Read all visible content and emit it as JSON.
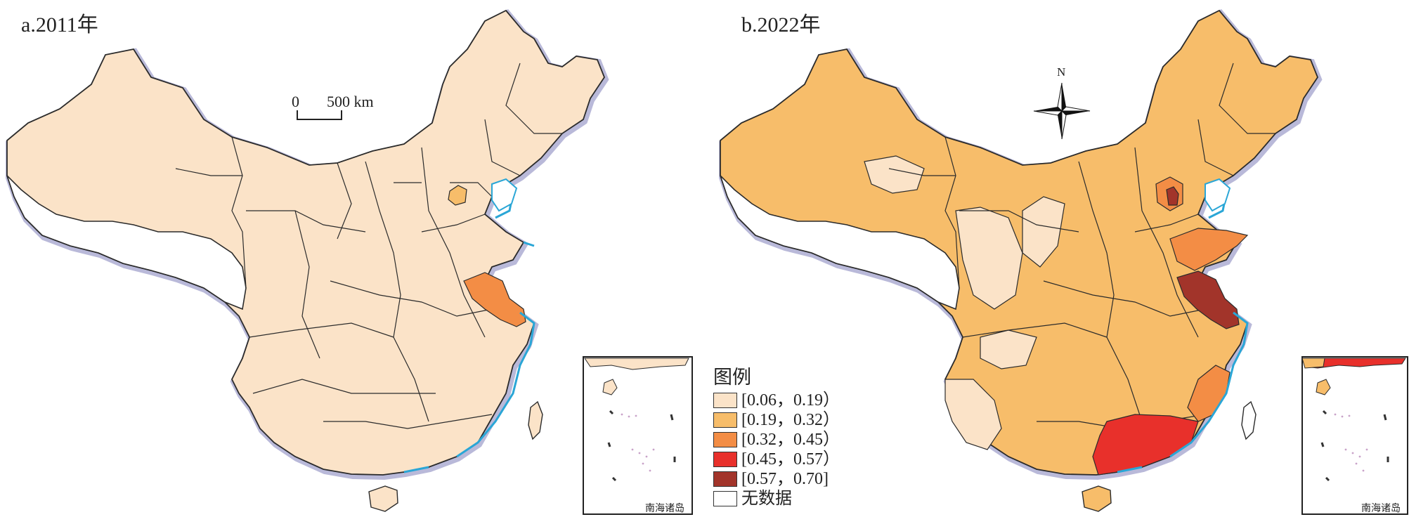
{
  "maps": [
    {
      "title": "a.2011年"
    },
    {
      "title": "b.2022年"
    }
  ],
  "scale_bar": {
    "start": "0",
    "end": "500 km"
  },
  "north_arrow": {
    "label": "N"
  },
  "inset": {
    "label": "南海诸岛"
  },
  "legend": {
    "title": "图例",
    "items": [
      {
        "label": "[0.06，0.19）",
        "color": "#fbe3c8"
      },
      {
        "label": "[0.19，0.32）",
        "color": "#f7bd6a"
      },
      {
        "label": "[0.32，0.45）",
        "color": "#f38d45"
      },
      {
        "label": "[0.45，0.57）",
        "color": "#e8302b"
      },
      {
        "label": "[0.57，0.70]",
        "color": "#a2342a"
      },
      {
        "label": "无数据",
        "color": "#ffffff"
      }
    ]
  },
  "colors": {
    "border": "#2b2b2b",
    "outline_shadow": "#b9b9d9",
    "sea_coast": "#2aa6d6",
    "no_data": "#ffffff"
  }
}
